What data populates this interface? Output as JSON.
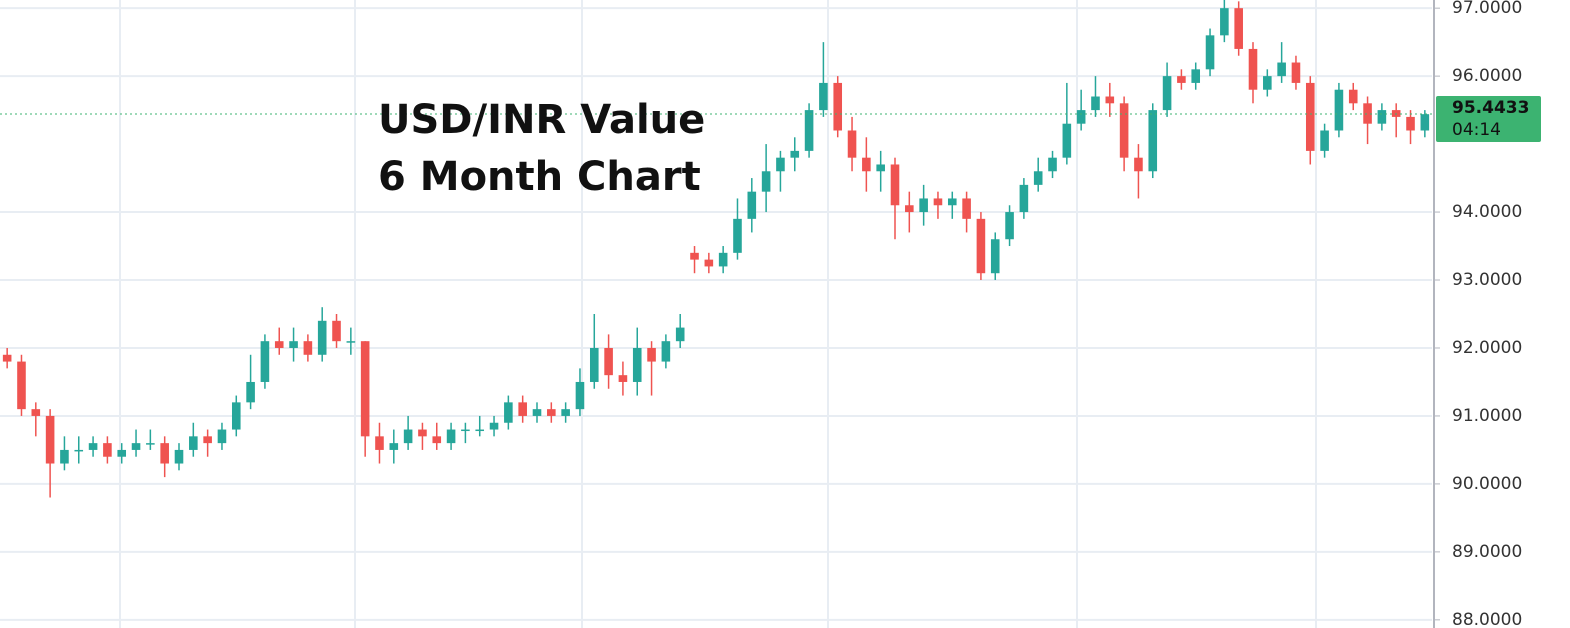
{
  "chart_data": {
    "type": "candlestick",
    "title": "USD/INR Value",
    "subtitle": "6 Month Chart",
    "up_color": "#26a69a",
    "down_color": "#ef5350",
    "ylim": [
      87.88,
      97.12
    ],
    "yticks": [
      {
        "value": 88,
        "label": "88.0000"
      },
      {
        "value": 89,
        "label": "89.0000"
      },
      {
        "value": 90,
        "label": "90.0000"
      },
      {
        "value": 91,
        "label": "91.0000"
      },
      {
        "value": 92,
        "label": "92.0000"
      },
      {
        "value": 93,
        "label": "93.0000"
      },
      {
        "value": 94,
        "label": "94.0000"
      },
      {
        "value": 96,
        "label": "96.0000"
      },
      {
        "value": 97,
        "label": "97.0000"
      }
    ],
    "grid": true,
    "last_price": 95.4433,
    "countdown": "04:14",
    "last_price_color": "#3cb371",
    "ohlc": [
      [
        91.9,
        92.0,
        91.7,
        91.8
      ],
      [
        91.8,
        91.9,
        91.0,
        91.1
      ],
      [
        91.1,
        91.2,
        90.7,
        91.0
      ],
      [
        91.0,
        91.1,
        89.8,
        90.3
      ],
      [
        90.3,
        90.7,
        90.2,
        90.5
      ],
      [
        90.5,
        90.7,
        90.3,
        90.5
      ],
      [
        90.5,
        90.7,
        90.4,
        90.6
      ],
      [
        90.6,
        90.7,
        90.3,
        90.4
      ],
      [
        90.4,
        90.6,
        90.3,
        90.5
      ],
      [
        90.5,
        90.8,
        90.4,
        90.6
      ],
      [
        90.6,
        90.8,
        90.5,
        90.6
      ],
      [
        90.6,
        90.7,
        90.1,
        90.3
      ],
      [
        90.3,
        90.6,
        90.2,
        90.5
      ],
      [
        90.5,
        90.9,
        90.4,
        90.7
      ],
      [
        90.7,
        90.8,
        90.4,
        90.6
      ],
      [
        90.6,
        90.9,
        90.5,
        90.8
      ],
      [
        90.8,
        91.3,
        90.7,
        91.2
      ],
      [
        91.2,
        91.9,
        91.1,
        91.5
      ],
      [
        91.5,
        92.2,
        91.4,
        92.1
      ],
      [
        92.1,
        92.3,
        91.9,
        92.0
      ],
      [
        92.0,
        92.3,
        91.8,
        92.1
      ],
      [
        92.1,
        92.2,
        91.8,
        91.9
      ],
      [
        91.9,
        92.6,
        91.8,
        92.4
      ],
      [
        92.4,
        92.5,
        92.0,
        92.1
      ],
      [
        92.1,
        92.3,
        91.9,
        92.1
      ],
      [
        92.1,
        92.1,
        90.4,
        90.7
      ],
      [
        90.7,
        90.9,
        90.3,
        90.5
      ],
      [
        90.5,
        90.8,
        90.3,
        90.6
      ],
      [
        90.6,
        91.0,
        90.5,
        90.8
      ],
      [
        90.8,
        90.9,
        90.5,
        90.7
      ],
      [
        90.7,
        90.9,
        90.5,
        90.6
      ],
      [
        90.6,
        90.9,
        90.5,
        90.8
      ],
      [
        90.8,
        90.9,
        90.6,
        90.8
      ],
      [
        90.8,
        91.0,
        90.7,
        90.8
      ],
      [
        90.8,
        91.0,
        90.7,
        90.9
      ],
      [
        90.9,
        91.3,
        90.8,
        91.2
      ],
      [
        91.2,
        91.3,
        90.9,
        91.0
      ],
      [
        91.0,
        91.2,
        90.9,
        91.1
      ],
      [
        91.1,
        91.2,
        90.9,
        91.0
      ],
      [
        91.0,
        91.2,
        90.9,
        91.1
      ],
      [
        91.1,
        91.7,
        91.0,
        91.5
      ],
      [
        91.5,
        92.5,
        91.4,
        92.0
      ],
      [
        92.0,
        92.2,
        91.4,
        91.6
      ],
      [
        91.6,
        91.8,
        91.3,
        91.5
      ],
      [
        91.5,
        92.3,
        91.3,
        92.0
      ],
      [
        92.0,
        92.1,
        91.3,
        91.8
      ],
      [
        91.8,
        92.2,
        91.7,
        92.1
      ],
      [
        92.1,
        92.5,
        92.0,
        92.3
      ],
      [
        93.4,
        93.5,
        93.1,
        93.3
      ],
      [
        93.3,
        93.4,
        93.1,
        93.2
      ],
      [
        93.2,
        93.5,
        93.1,
        93.4
      ],
      [
        93.4,
        94.2,
        93.3,
        93.9
      ],
      [
        93.9,
        94.5,
        93.7,
        94.3
      ],
      [
        94.3,
        95.0,
        94.0,
        94.6
      ],
      [
        94.6,
        94.9,
        94.3,
        94.8
      ],
      [
        94.8,
        95.1,
        94.6,
        94.9
      ],
      [
        94.9,
        95.6,
        94.8,
        95.5
      ],
      [
        95.5,
        96.5,
        95.4,
        95.9
      ],
      [
        95.9,
        96.0,
        95.1,
        95.2
      ],
      [
        95.2,
        95.4,
        94.6,
        94.8
      ],
      [
        94.8,
        95.1,
        94.3,
        94.6
      ],
      [
        94.6,
        94.9,
        94.3,
        94.7
      ],
      [
        94.7,
        94.8,
        93.6,
        94.1
      ],
      [
        94.1,
        94.3,
        93.7,
        94.0
      ],
      [
        94.0,
        94.4,
        93.8,
        94.2
      ],
      [
        94.2,
        94.3,
        93.9,
        94.1
      ],
      [
        94.1,
        94.3,
        93.9,
        94.2
      ],
      [
        94.2,
        94.3,
        93.7,
        93.9
      ],
      [
        93.9,
        94.0,
        93.0,
        93.1
      ],
      [
        93.1,
        93.7,
        93.0,
        93.6
      ],
      [
        93.6,
        94.1,
        93.5,
        94.0
      ],
      [
        94.0,
        94.5,
        93.9,
        94.4
      ],
      [
        94.4,
        94.8,
        94.3,
        94.6
      ],
      [
        94.6,
        94.9,
        94.5,
        94.8
      ],
      [
        94.8,
        95.9,
        94.7,
        95.3
      ],
      [
        95.3,
        95.8,
        95.2,
        95.5
      ],
      [
        95.5,
        96.0,
        95.4,
        95.7
      ],
      [
        95.7,
        95.9,
        95.4,
        95.6
      ],
      [
        95.6,
        95.7,
        94.6,
        94.8
      ],
      [
        94.8,
        95.0,
        94.2,
        94.6
      ],
      [
        94.6,
        95.6,
        94.5,
        95.5
      ],
      [
        95.5,
        96.2,
        95.4,
        96.0
      ],
      [
        96.0,
        96.1,
        95.8,
        95.9
      ],
      [
        95.9,
        96.2,
        95.8,
        96.1
      ],
      [
        96.1,
        96.7,
        96.0,
        96.6
      ],
      [
        96.6,
        97.2,
        96.5,
        97.0
      ],
      [
        97.0,
        97.1,
        96.3,
        96.4
      ],
      [
        96.4,
        96.5,
        95.6,
        95.8
      ],
      [
        95.8,
        96.1,
        95.7,
        96.0
      ],
      [
        96.0,
        96.5,
        95.9,
        96.2
      ],
      [
        96.2,
        96.3,
        95.8,
        95.9
      ],
      [
        95.9,
        96.0,
        94.7,
        94.9
      ],
      [
        94.9,
        95.3,
        94.8,
        95.2
      ],
      [
        95.2,
        95.9,
        95.1,
        95.8
      ],
      [
        95.8,
        95.9,
        95.5,
        95.6
      ],
      [
        95.6,
        95.7,
        95.0,
        95.3
      ],
      [
        95.3,
        95.6,
        95.2,
        95.5
      ],
      [
        95.5,
        95.6,
        95.1,
        95.4
      ],
      [
        95.4,
        95.5,
        95.0,
        95.2
      ],
      [
        95.2,
        95.5,
        95.1,
        95.44
      ]
    ]
  }
}
